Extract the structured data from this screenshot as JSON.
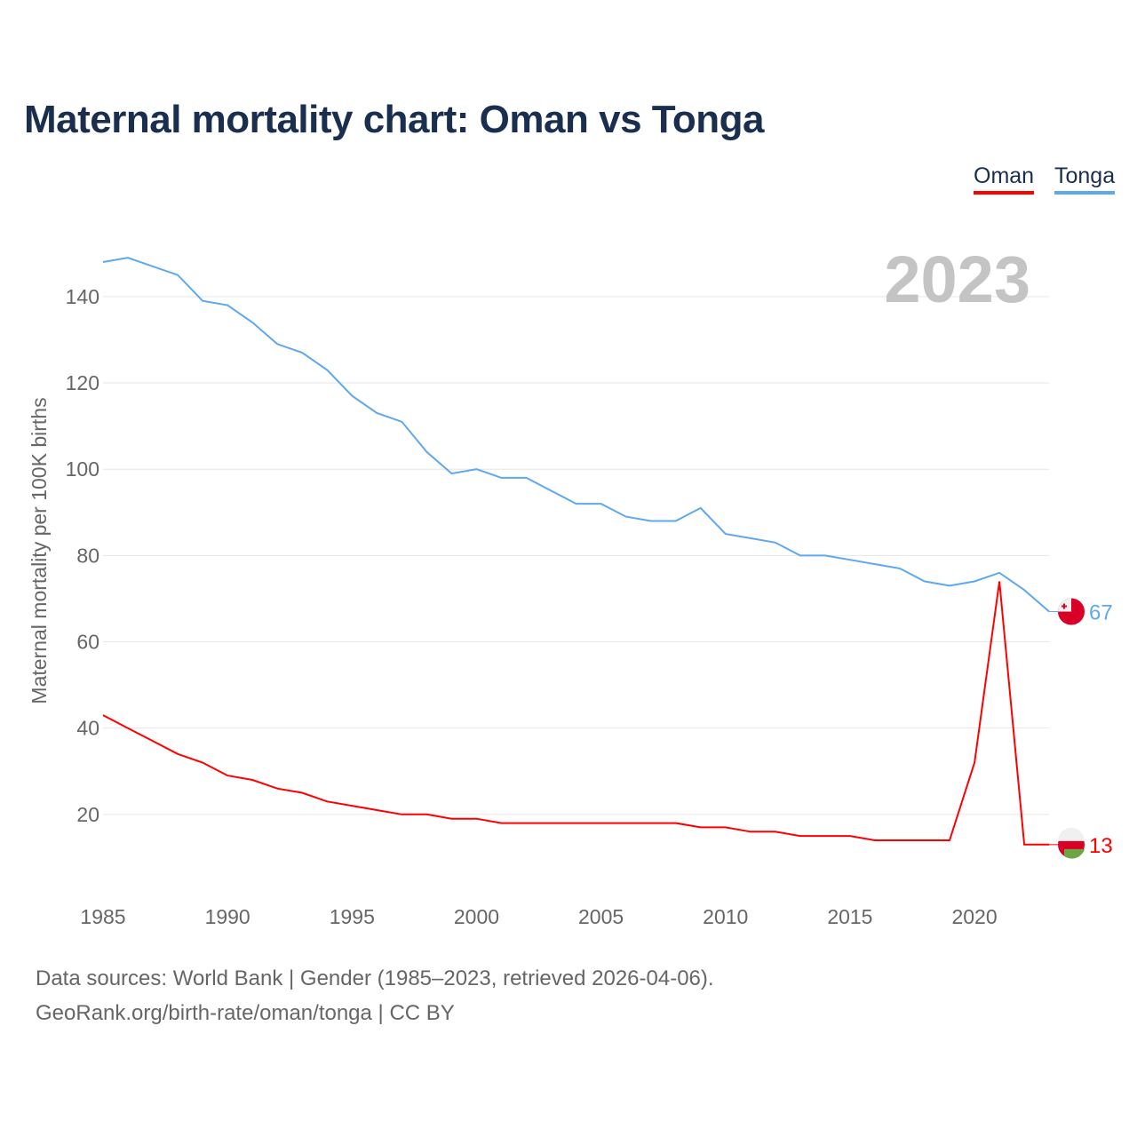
{
  "title": "Maternal mortality chart: Oman vs Tonga",
  "legend": {
    "oman": "Oman",
    "tonga": "Tonga"
  },
  "footer": {
    "line1": "Data sources: World Bank | Gender (1985–2023, retrieved 2026-04-06).",
    "line2": "GeoRank.org/birth-rate/oman/tonga | CC BY"
  },
  "chart_data": {
    "type": "line",
    "title": "Maternal mortality chart: Oman vs Tonga",
    "year_label": "2023",
    "xlabel": "",
    "ylabel": "Maternal mortality per 100K births",
    "xlim": [
      1985,
      2023
    ],
    "ylim": [
      0,
      150
    ],
    "x_ticks": [
      1985,
      1990,
      1995,
      2000,
      2005,
      2010,
      2015,
      2020
    ],
    "y_ticks": [
      20,
      40,
      60,
      80,
      100,
      120,
      140
    ],
    "grid": true,
    "legend_position": "top-right",
    "x": [
      1985,
      1986,
      1987,
      1988,
      1989,
      1990,
      1991,
      1992,
      1993,
      1994,
      1995,
      1996,
      1997,
      1998,
      1999,
      2000,
      2001,
      2002,
      2003,
      2004,
      2005,
      2006,
      2007,
      2008,
      2009,
      2010,
      2011,
      2012,
      2013,
      2014,
      2015,
      2016,
      2017,
      2018,
      2019,
      2020,
      2021,
      2022,
      2023
    ],
    "series": [
      {
        "name": "Tonga",
        "color": "#5ea8f0",
        "end_label": "67",
        "values": [
          148,
          149,
          147,
          145,
          139,
          138,
          134,
          129,
          127,
          123,
          117,
          113,
          111,
          104,
          99,
          100,
          98,
          98,
          95,
          92,
          92,
          89,
          88,
          88,
          91,
          85,
          84,
          83,
          80,
          80,
          79,
          78,
          77,
          74,
          73,
          74,
          76,
          72,
          67
        ]
      },
      {
        "name": "Oman",
        "color": "#ff0000",
        "end_label": "13",
        "values": [
          43,
          40,
          37,
          34,
          32,
          29,
          28,
          26,
          25,
          23,
          22,
          21,
          20,
          20,
          19,
          19,
          18,
          18,
          18,
          18,
          18,
          18,
          18,
          18,
          17,
          17,
          16,
          16,
          15,
          15,
          15,
          14,
          14,
          14,
          14,
          32,
          74,
          13,
          13
        ]
      }
    ]
  }
}
